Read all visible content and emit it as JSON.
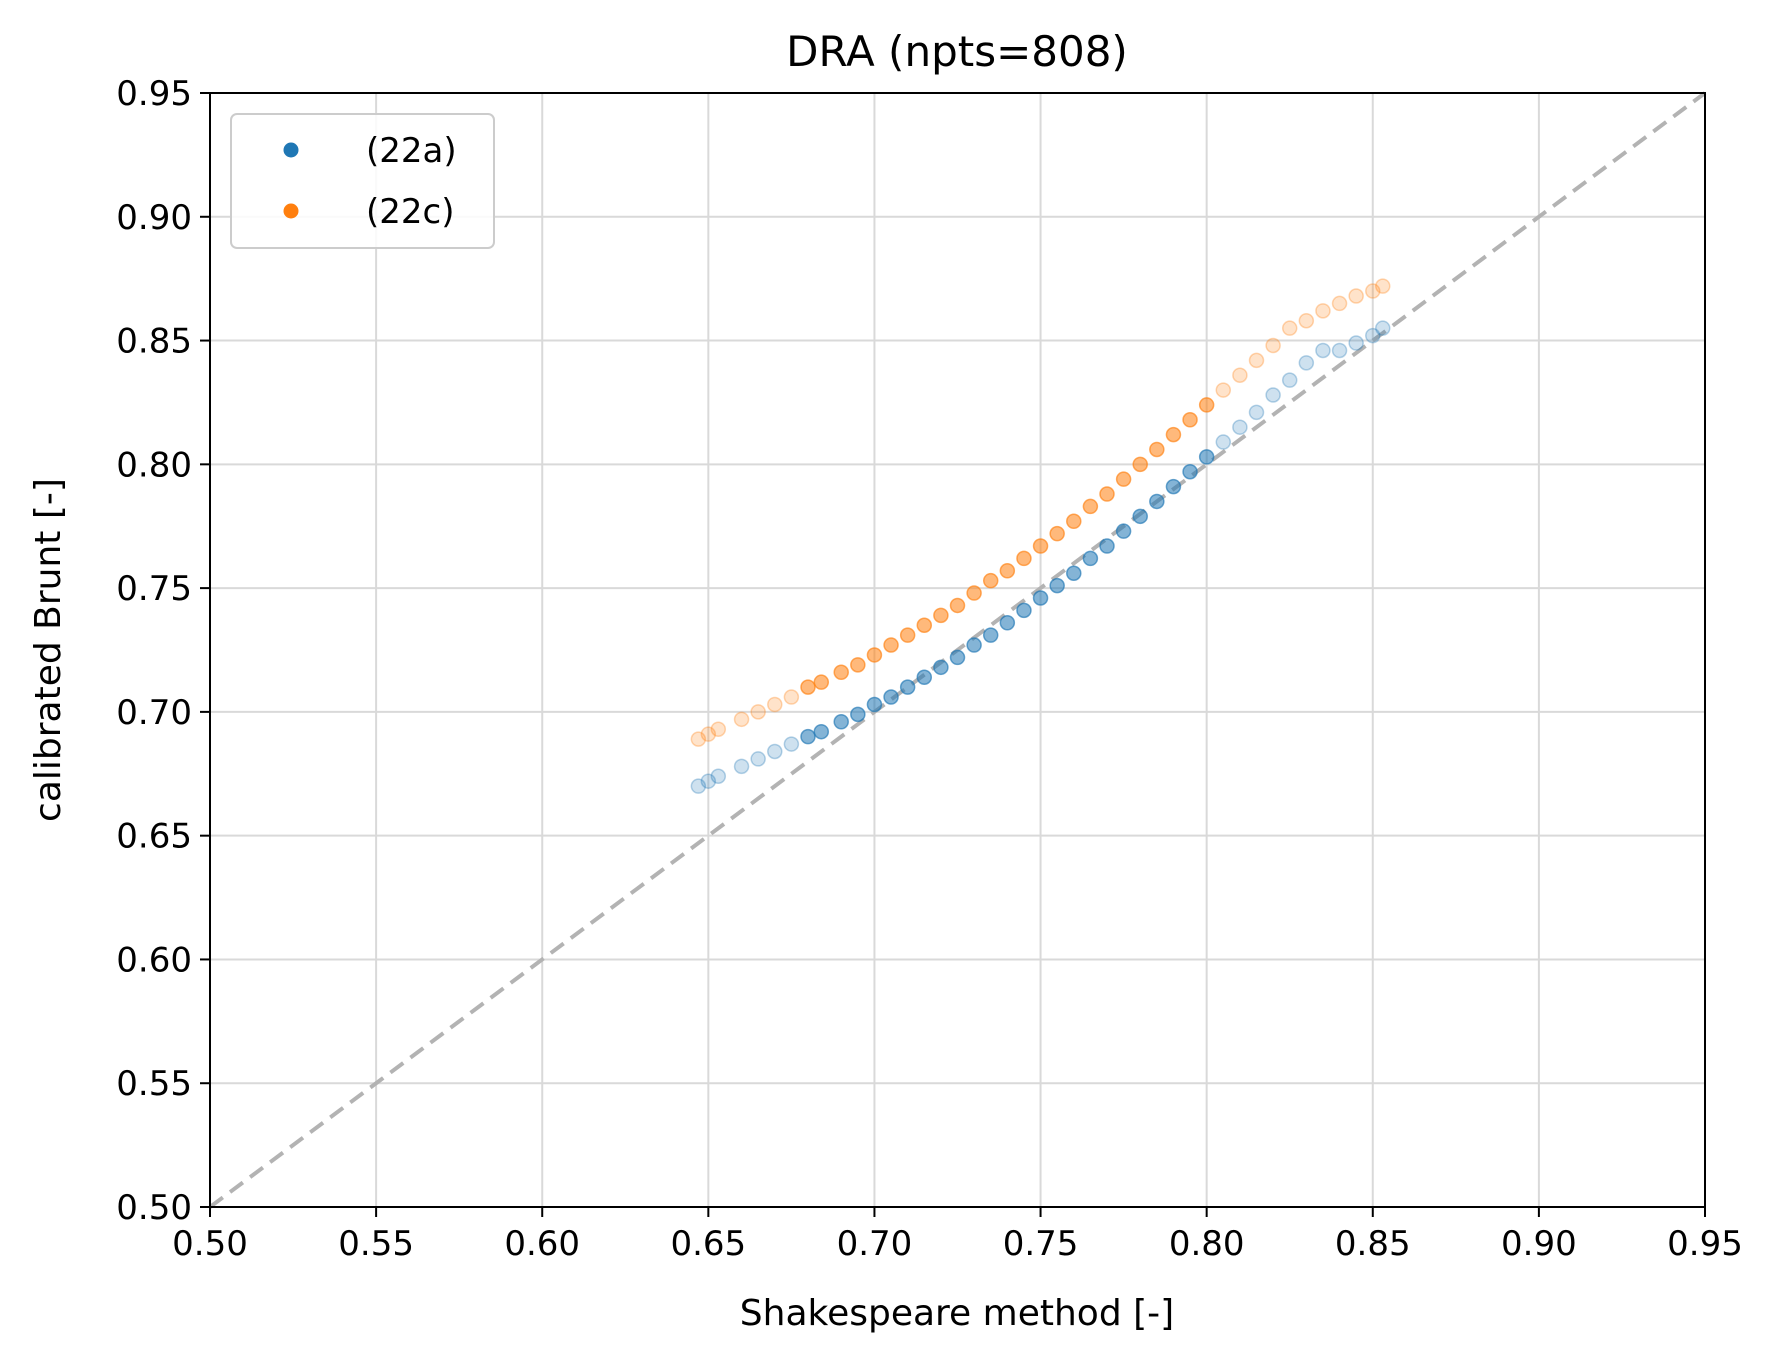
{
  "chart_data": {
    "type": "scatter",
    "title": "DRA (npts=808)",
    "xlabel": "Shakespeare method [-]",
    "ylabel": "calibrated Brunt [-]",
    "xlim": [
      0.5,
      0.95
    ],
    "ylim": [
      0.5,
      0.95
    ],
    "xticks": [
      "0.50",
      "0.55",
      "0.60",
      "0.65",
      "0.70",
      "0.75",
      "0.80",
      "0.85",
      "0.90",
      "0.95"
    ],
    "yticks": [
      "0.50",
      "0.55",
      "0.60",
      "0.65",
      "0.70",
      "0.75",
      "0.80",
      "0.85",
      "0.90",
      "0.95"
    ],
    "grid": true,
    "legend_position": "top-left",
    "reference_line": {
      "style": "dashed",
      "color": "#b3b3b3",
      "x": [
        0.5,
        0.95
      ],
      "y": [
        0.5,
        0.95
      ]
    },
    "series": [
      {
        "name": "(22a)",
        "color": "#1f77b4",
        "x": [
          0.647,
          0.65,
          0.653,
          0.66,
          0.665,
          0.67,
          0.675,
          0.68,
          0.684,
          0.69,
          0.695,
          0.7,
          0.705,
          0.71,
          0.715,
          0.72,
          0.725,
          0.73,
          0.735,
          0.74,
          0.745,
          0.75,
          0.755,
          0.76,
          0.765,
          0.77,
          0.775,
          0.78,
          0.785,
          0.79,
          0.795,
          0.8,
          0.805,
          0.81,
          0.815,
          0.82,
          0.825,
          0.83,
          0.835,
          0.84,
          0.845,
          0.85,
          0.853
        ],
        "y": [
          0.67,
          0.672,
          0.674,
          0.678,
          0.681,
          0.684,
          0.687,
          0.69,
          0.692,
          0.696,
          0.699,
          0.703,
          0.706,
          0.71,
          0.714,
          0.718,
          0.722,
          0.727,
          0.731,
          0.736,
          0.741,
          0.746,
          0.751,
          0.756,
          0.762,
          0.767,
          0.773,
          0.779,
          0.785,
          0.791,
          0.797,
          0.803,
          0.809,
          0.815,
          0.821,
          0.828,
          0.834,
          0.841,
          0.846,
          0.846,
          0.849,
          0.852,
          0.855
        ]
      },
      {
        "name": "(22c)",
        "color": "#ff7f0e",
        "x": [
          0.647,
          0.65,
          0.653,
          0.66,
          0.665,
          0.67,
          0.675,
          0.68,
          0.684,
          0.69,
          0.695,
          0.7,
          0.705,
          0.71,
          0.715,
          0.72,
          0.725,
          0.73,
          0.735,
          0.74,
          0.745,
          0.75,
          0.755,
          0.76,
          0.765,
          0.77,
          0.775,
          0.78,
          0.785,
          0.79,
          0.795,
          0.8,
          0.805,
          0.81,
          0.815,
          0.82,
          0.825,
          0.83,
          0.835,
          0.84,
          0.845,
          0.85,
          0.853
        ],
        "y": [
          0.689,
          0.691,
          0.693,
          0.697,
          0.7,
          0.703,
          0.706,
          0.71,
          0.712,
          0.716,
          0.719,
          0.723,
          0.727,
          0.731,
          0.735,
          0.739,
          0.743,
          0.748,
          0.753,
          0.757,
          0.762,
          0.767,
          0.772,
          0.777,
          0.783,
          0.788,
          0.794,
          0.8,
          0.806,
          0.812,
          0.818,
          0.824,
          0.83,
          0.836,
          0.842,
          0.848,
          0.855,
          0.858,
          0.862,
          0.865,
          0.868,
          0.87,
          0.872
        ]
      }
    ]
  }
}
